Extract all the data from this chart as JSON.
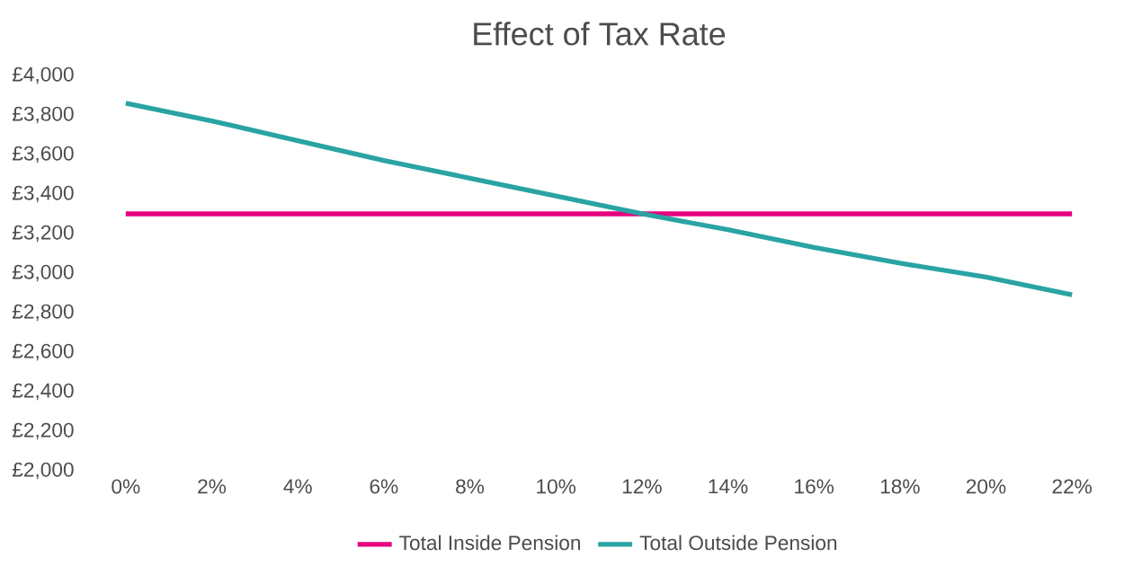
{
  "chart_data": {
    "type": "line",
    "title": "Effect of Tax Rate",
    "categories": [
      "0%",
      "2%",
      "4%",
      "6%",
      "8%",
      "10%",
      "12%",
      "14%",
      "16%",
      "18%",
      "20%",
      "22%"
    ],
    "series": [
      {
        "name": "Total Inside Pension",
        "color": "#e6007e",
        "values": [
          3300,
          3300,
          3300,
          3300,
          3300,
          3300,
          3300,
          3300,
          3300,
          3300,
          3300,
          3300
        ]
      },
      {
        "name": "Total Outside Pension",
        "color": "#2aa3a3",
        "values": [
          3860,
          3770,
          3670,
          3570,
          3480,
          3390,
          3300,
          3220,
          3130,
          3050,
          2980,
          2890
        ]
      }
    ],
    "ylim": [
      2000,
      4000
    ],
    "yticks": [
      {
        "value": 2000,
        "label": "£2,000"
      },
      {
        "value": 2200,
        "label": "£2,200"
      },
      {
        "value": 2400,
        "label": "£2,400"
      },
      {
        "value": 2600,
        "label": "£2,600"
      },
      {
        "value": 2800,
        "label": "£2,800"
      },
      {
        "value": 3000,
        "label": "£3,000"
      },
      {
        "value": 3200,
        "label": "£3,200"
      },
      {
        "value": 3400,
        "label": "£3,400"
      },
      {
        "value": 3600,
        "label": "£3,600"
      },
      {
        "value": 3800,
        "label": "£3,800"
      },
      {
        "value": 4000,
        "label": "£4,000"
      }
    ],
    "legend": "bottom",
    "marker": "none",
    "line_style": "solid",
    "grid": false
  }
}
